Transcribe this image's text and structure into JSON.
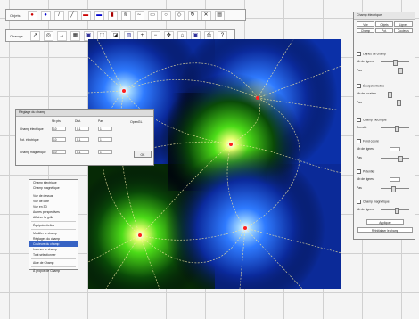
{
  "toolbar_top": {
    "label": "Objets"
  },
  "toolbar_second": {
    "label": "Champs"
  },
  "dialog": {
    "title": "Réglage du champ",
    "headers": [
      "Nb pts",
      "Dist.",
      "Pas"
    ],
    "rows": [
      {
        "label": "Champ électrique",
        "v1": "10",
        "v2": "0.1",
        "v3": "1"
      },
      {
        "label": "Pot. électrique",
        "v1": "10",
        "v2": "0.1",
        "v3": "1"
      },
      {
        "label": "Champ magnétique",
        "v1": "10",
        "v2": "0.1",
        "v3": "1"
      }
    ],
    "opengl_label": "OpenGL",
    "ok": "OK"
  },
  "context_menu": {
    "items": [
      "Champ électrique",
      "Champ magnétique",
      "Vue de dessus",
      "Vue de côté",
      "Vue en 3D",
      "Autres perspectives",
      "Afficher la grille",
      "Équipotentielles",
      "Modifier le champ",
      "Réglages du champ",
      "Couleurs du champ",
      "Inverser le champ",
      "Tout sélectionner",
      "Aide de Champ",
      "À propos de Champ"
    ],
    "selected_index": 10
  },
  "panel": {
    "title": "Champ électrique",
    "tabs": [
      "Vue",
      "Objets",
      "Lignes",
      "Champ",
      "Pot.",
      "Couleurs"
    ],
    "sections": [
      {
        "title": "Lignes de champ",
        "fields": [
          "Nb de lignes",
          "Pas"
        ]
      },
      {
        "title": "Équipotentielles",
        "fields": [
          "Nb de courbes",
          "Pas"
        ]
      },
      {
        "title": "Champ électrique",
        "fields": [
          "Densité"
        ]
      },
      {
        "title": "Fond coloré",
        "fields": [
          "Nb de lignes",
          "Pas"
        ]
      },
      {
        "title": "Potentiel",
        "fields": [
          "Nb de lignes",
          "Pas"
        ]
      },
      {
        "title": "Champ magnétique",
        "fields": [
          "Nb de lignes"
        ]
      }
    ],
    "button_apply": "Appliquer",
    "button_reset": "Réinitialiser le champ"
  },
  "colors": {
    "positive_charge": "#4da6ff",
    "negative_charge": "#66ff33",
    "field_line": "#f0e6a0",
    "canvas_bg": "#00010e"
  }
}
